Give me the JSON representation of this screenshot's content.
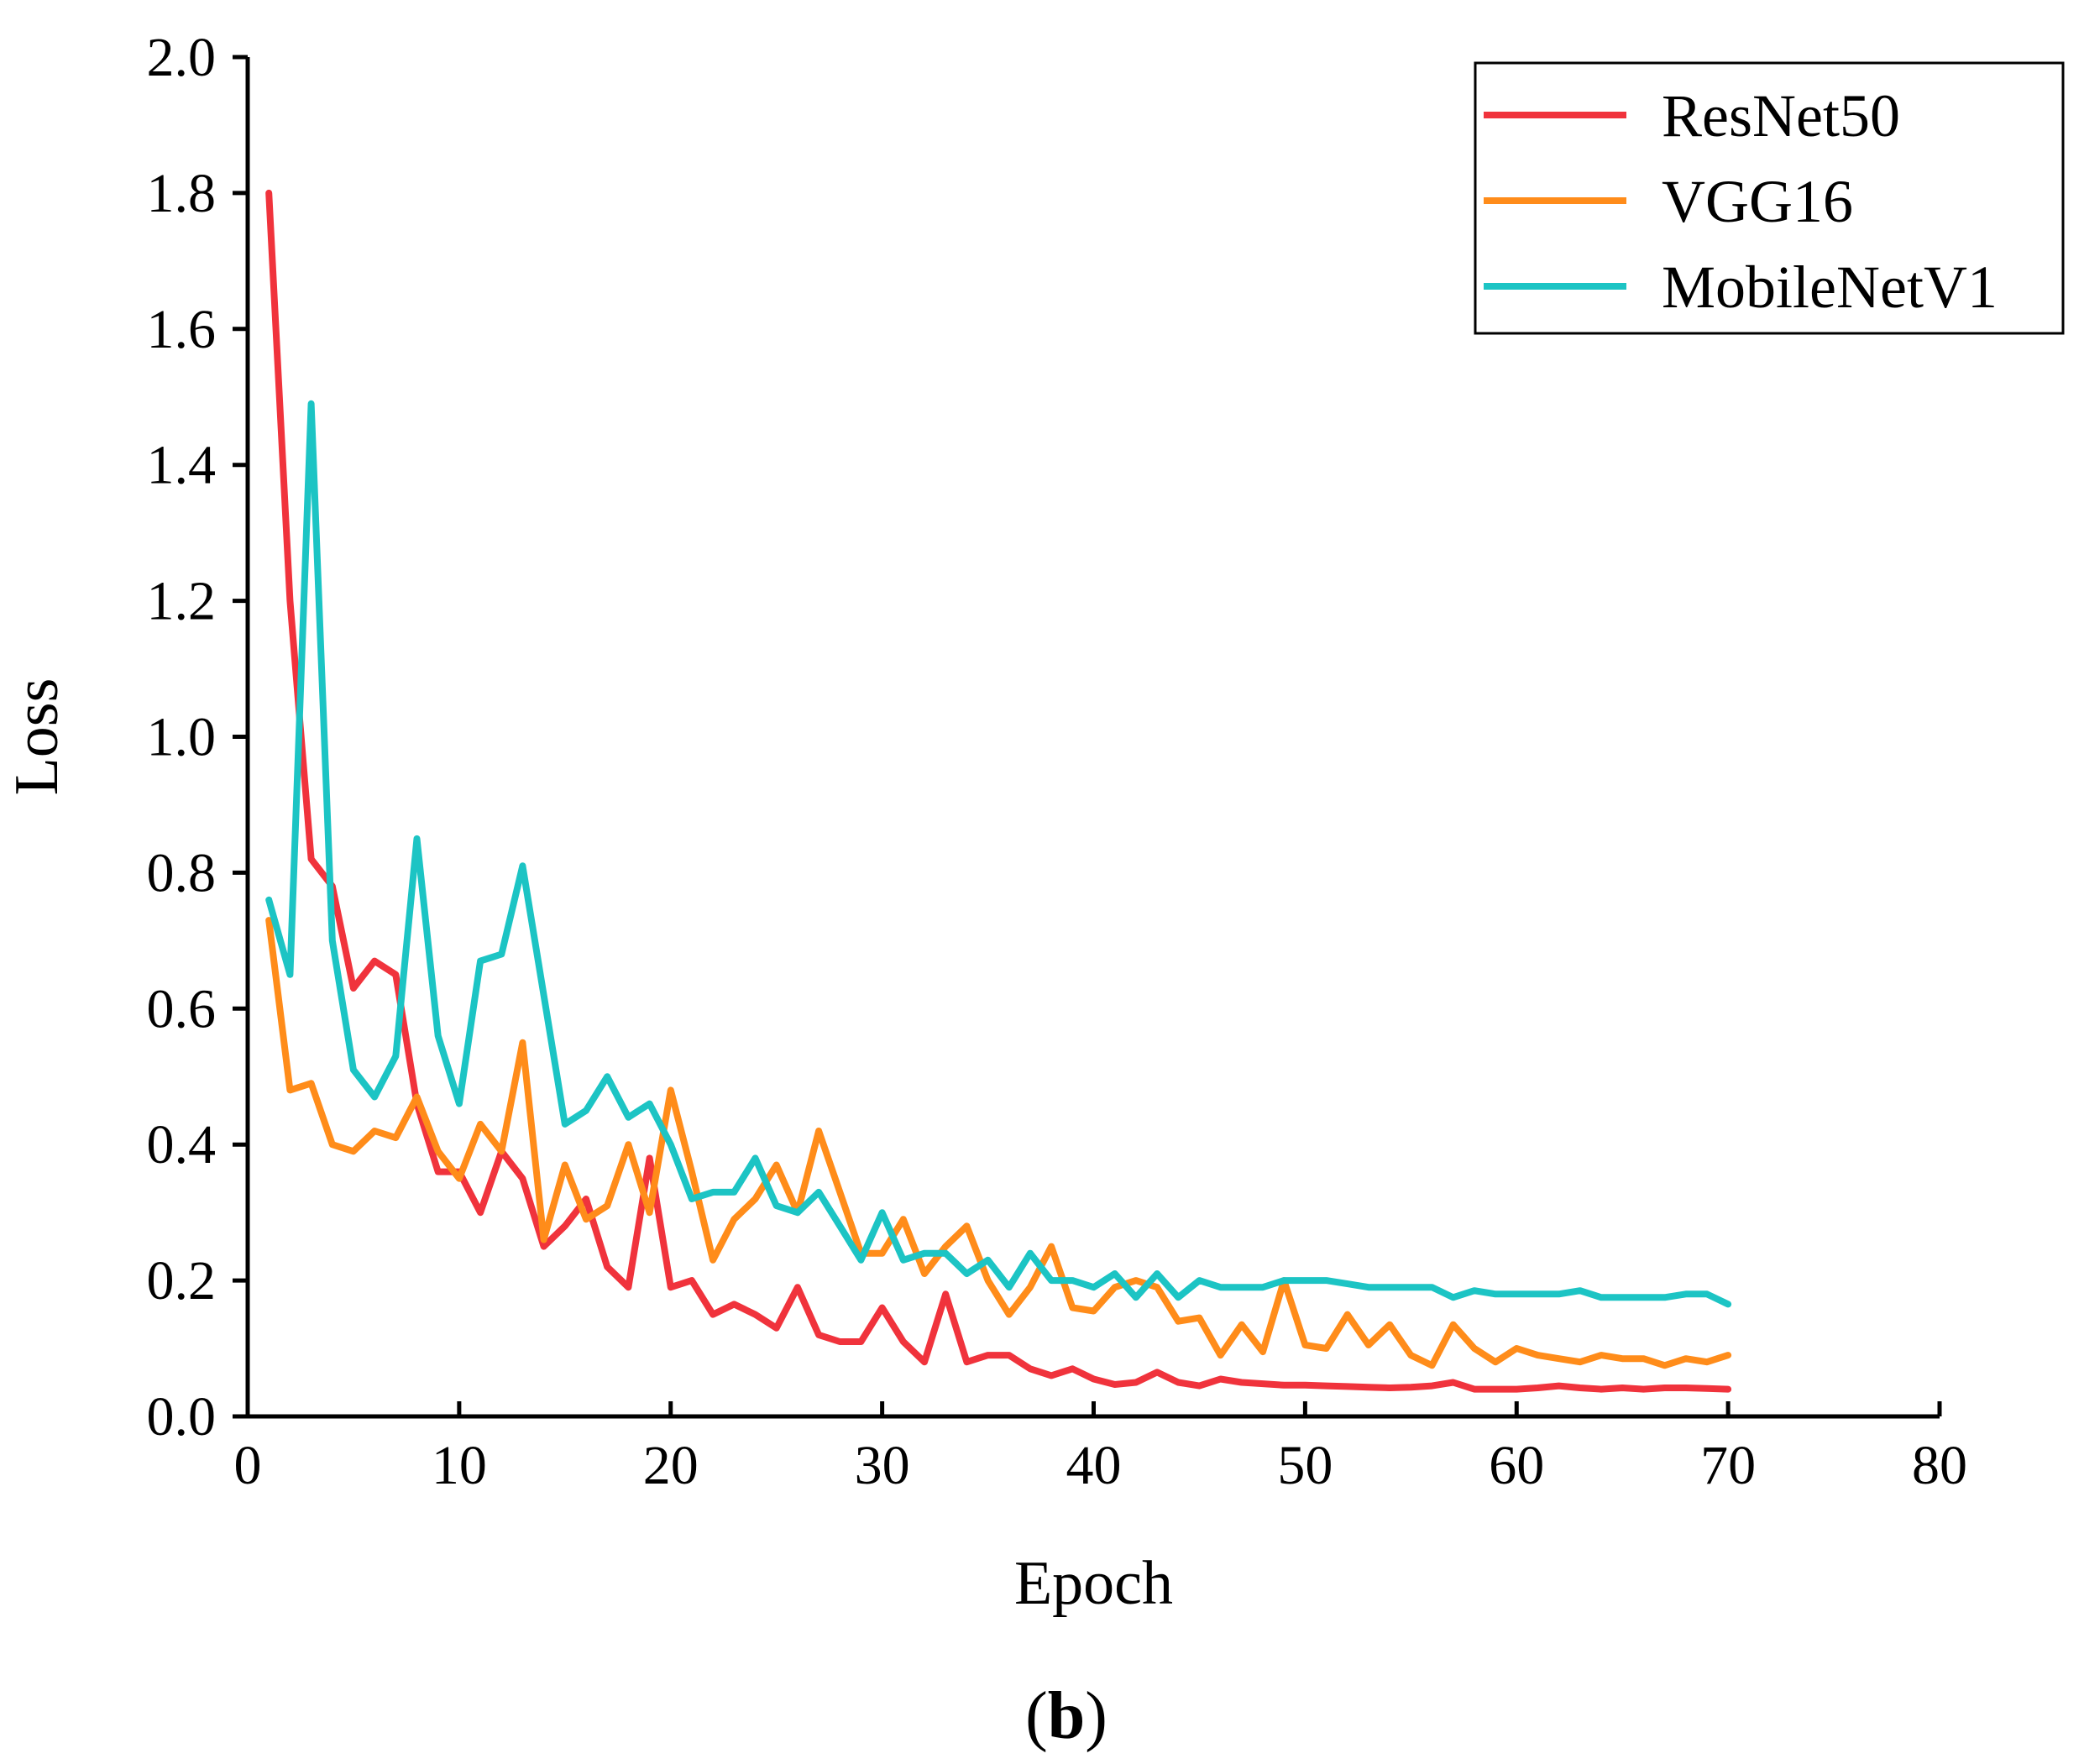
{
  "chart_data": {
    "type": "line",
    "xlabel": "Epoch",
    "ylabel": "Loss",
    "xlim": [
      0,
      80
    ],
    "ylim": [
      0.0,
      2.0
    ],
    "xticks": [
      0,
      10,
      20,
      30,
      40,
      50,
      60,
      70,
      80
    ],
    "xtick_labels": [
      "0",
      "10",
      "20",
      "30",
      "40",
      "50",
      "60",
      "70",
      "80"
    ],
    "yticks": [
      0.0,
      0.2,
      0.4,
      0.6,
      0.8,
      1.0,
      1.2,
      1.4,
      1.6,
      1.8,
      2.0
    ],
    "ytick_labels": [
      "0.0",
      "0.2",
      "0.4",
      "0.6",
      "0.8",
      "1.0",
      "1.2",
      "1.4",
      "1.6",
      "1.8",
      "2.0"
    ],
    "grid": false,
    "legend_position": "top-right",
    "panel_label": "b",
    "x": [
      1,
      2,
      3,
      4,
      5,
      6,
      7,
      8,
      9,
      10,
      11,
      12,
      13,
      14,
      15,
      16,
      17,
      18,
      19,
      20,
      21,
      22,
      23,
      24,
      25,
      26,
      27,
      28,
      29,
      30,
      31,
      32,
      33,
      34,
      35,
      36,
      37,
      38,
      39,
      40,
      41,
      42,
      43,
      44,
      45,
      46,
      47,
      48,
      49,
      50,
      51,
      52,
      53,
      54,
      55,
      56,
      57,
      58,
      59,
      60,
      61,
      62,
      63,
      64,
      65,
      66,
      67,
      68,
      69,
      70
    ],
    "series": [
      {
        "name": "ResNet50",
        "color": "#f0333c",
        "values": [
          1.8,
          1.2,
          0.82,
          0.78,
          0.63,
          0.67,
          0.65,
          0.46,
          0.36,
          0.36,
          0.3,
          0.39,
          0.35,
          0.25,
          0.28,
          0.32,
          0.22,
          0.19,
          0.38,
          0.19,
          0.2,
          0.15,
          0.165,
          0.15,
          0.13,
          0.19,
          0.12,
          0.11,
          0.11,
          0.16,
          0.11,
          0.08,
          0.18,
          0.08,
          0.09,
          0.09,
          0.07,
          0.06,
          0.07,
          0.055,
          0.047,
          0.05,
          0.065,
          0.05,
          0.045,
          0.055,
          0.05,
          0.048,
          0.046,
          0.046,
          0.045,
          0.044,
          0.043,
          0.042,
          0.043,
          0.045,
          0.05,
          0.04,
          0.04,
          0.04,
          0.042,
          0.045,
          0.042,
          0.04,
          0.042,
          0.04,
          0.042,
          0.042,
          0.041,
          0.04
        ]
      },
      {
        "name": "VGG16",
        "color": "#ff8c1a",
        "values": [
          0.73,
          0.48,
          0.49,
          0.4,
          0.39,
          0.42,
          0.41,
          0.47,
          0.39,
          0.35,
          0.43,
          0.39,
          0.55,
          0.26,
          0.37,
          0.29,
          0.31,
          0.4,
          0.3,
          0.48,
          0.36,
          0.23,
          0.29,
          0.32,
          0.37,
          0.3,
          0.42,
          0.33,
          0.24,
          0.24,
          0.29,
          0.21,
          0.25,
          0.28,
          0.2,
          0.15,
          0.19,
          0.25,
          0.16,
          0.155,
          0.19,
          0.2,
          0.19,
          0.14,
          0.145,
          0.09,
          0.135,
          0.095,
          0.2,
          0.105,
          0.1,
          0.15,
          0.105,
          0.135,
          0.09,
          0.075,
          0.135,
          0.1,
          0.08,
          0.1,
          0.09,
          0.085,
          0.08,
          0.09,
          0.085,
          0.085,
          0.075,
          0.085,
          0.08,
          0.09
        ]
      },
      {
        "name": "MobileNetV1",
        "color": "#1cc4c4",
        "values": [
          0.76,
          0.65,
          1.49,
          0.7,
          0.51,
          0.47,
          0.53,
          0.85,
          0.56,
          0.46,
          0.67,
          0.68,
          0.81,
          0.62,
          0.43,
          0.45,
          0.5,
          0.44,
          0.46,
          0.4,
          0.32,
          0.33,
          0.33,
          0.38,
          0.31,
          0.3,
          0.33,
          0.28,
          0.23,
          0.3,
          0.23,
          0.24,
          0.24,
          0.21,
          0.23,
          0.19,
          0.24,
          0.2,
          0.2,
          0.19,
          0.21,
          0.175,
          0.21,
          0.175,
          0.2,
          0.19,
          0.19,
          0.19,
          0.2,
          0.2,
          0.2,
          0.195,
          0.19,
          0.19,
          0.19,
          0.19,
          0.175,
          0.185,
          0.18,
          0.18,
          0.18,
          0.18,
          0.185,
          0.175,
          0.175,
          0.175,
          0.175,
          0.18,
          0.18,
          0.165
        ]
      }
    ]
  }
}
